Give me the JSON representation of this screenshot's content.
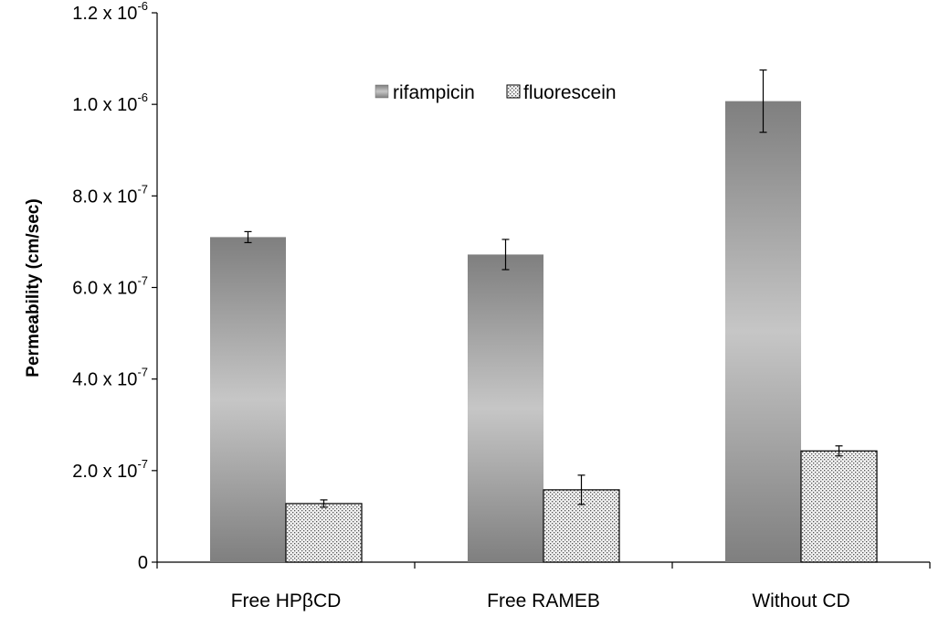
{
  "chart_data": {
    "type": "bar",
    "title": "",
    "xlabel": "",
    "ylabel": "Permeability (cm/sec)",
    "categories": [
      "Free HPβCD",
      "Free RAMEB",
      "Without CD"
    ],
    "series": [
      {
        "name": "rifampicin",
        "values": [
          7.1e-07,
          6.72e-07,
          1.007e-06
        ],
        "errors": [
          1.2e-08,
          3.3e-08,
          6.8e-08
        ],
        "fill": "gradient-gray"
      },
      {
        "name": "fluorescein",
        "values": [
          1.28e-07,
          1.58e-07,
          2.43e-07
        ],
        "errors": [
          8e-09,
          3.2e-08,
          1.1e-08
        ],
        "fill": "dotted"
      }
    ],
    "ylim": [
      0,
      1.2e-06
    ],
    "yticks": [
      {
        "value": 0,
        "mantissa": "0",
        "exp": ""
      },
      {
        "value": 2e-07,
        "mantissa": "2.0 x 10",
        "exp": "-7"
      },
      {
        "value": 4e-07,
        "mantissa": "4.0 x 10",
        "exp": "-7"
      },
      {
        "value": 6e-07,
        "mantissa": "6.0 x 10",
        "exp": "-7"
      },
      {
        "value": 8e-07,
        "mantissa": "8.0 x 10",
        "exp": "-7"
      },
      {
        "value": 1e-06,
        "mantissa": "1.0 x 10",
        "exp": "-6"
      },
      {
        "value": 1.2e-06,
        "mantissa": "1.2 x 10",
        "exp": "-6"
      }
    ],
    "grid": false,
    "legend": "top-center",
    "colors": {
      "bar_dark": "#7f7f7f",
      "bar_light": "#c6c6c6",
      "dot_fill": "#f2f2f2",
      "dot": "#555555"
    }
  }
}
